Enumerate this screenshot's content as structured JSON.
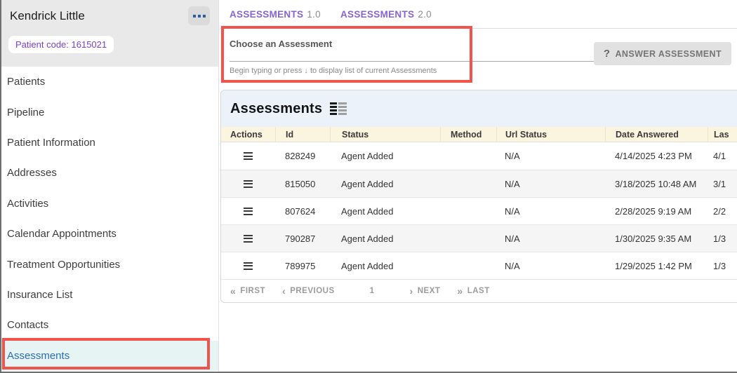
{
  "colors": {
    "tab_purple": "#8a63d2",
    "annotation_red": "#f0544c",
    "active_item_bg": "#e7f4f4",
    "active_item_text": "#2e6cb5",
    "patient_code_purple": "#7b3fd4",
    "table_header_bg": "#fbf5df",
    "panel_header_bg": "#ecf2f9",
    "more_dots_blue": "#2d5f9e"
  },
  "sidebar": {
    "patient_name": "Kendrick Little",
    "patient_code": "Patient code: 1615021",
    "items": [
      {
        "label": "Patients",
        "active": false
      },
      {
        "label": "Pipeline",
        "active": false
      },
      {
        "label": "Patient Information",
        "active": false
      },
      {
        "label": "Addresses",
        "active": false
      },
      {
        "label": "Activities",
        "active": false
      },
      {
        "label": "Calendar Appointments",
        "active": false
      },
      {
        "label": "Treatment Opportunities",
        "active": false
      },
      {
        "label": "Insurance List",
        "active": false
      },
      {
        "label": "Contacts",
        "active": false
      },
      {
        "label": "Assessments",
        "active": true
      }
    ]
  },
  "tabs": [
    {
      "name": "ASSESSMENTS",
      "version": "1.0"
    },
    {
      "name": "ASSESSMENTS",
      "version": "2.0"
    }
  ],
  "picker": {
    "label": "Choose an Assessment",
    "value": "",
    "helper": "Begin typing or press ↓ to display list of current Assessments"
  },
  "answer_button": {
    "icon": "?",
    "label": "ANSWER ASSESSMENT"
  },
  "table": {
    "title": "Assessments",
    "columns": [
      "Actions",
      "Id",
      "Status",
      "Method",
      "Url Status",
      "Date Answered",
      "Las"
    ],
    "rows": [
      {
        "id": "828249",
        "status": "Agent Added",
        "method": "",
        "url_status": "N/A",
        "date_answered": "4/14/2025 4:23 PM",
        "last": "4/1"
      },
      {
        "id": "815050",
        "status": "Agent Added",
        "method": "",
        "url_status": "N/A",
        "date_answered": "3/18/2025 10:48 AM",
        "last": "3/1"
      },
      {
        "id": "807624",
        "status": "Agent Added",
        "method": "",
        "url_status": "N/A",
        "date_answered": "2/28/2025 9:19 AM",
        "last": "2/2"
      },
      {
        "id": "790287",
        "status": "Agent Added",
        "method": "",
        "url_status": "N/A",
        "date_answered": "1/30/2025 9:35 AM",
        "last": "1/3"
      },
      {
        "id": "789975",
        "status": "Agent Added",
        "method": "",
        "url_status": "N/A",
        "date_answered": "1/29/2025 1:42 PM",
        "last": "1/3"
      }
    ],
    "pagination": {
      "first": "FIRST",
      "previous": "PREVIOUS",
      "page": "1",
      "next": "NEXT",
      "last": "LAST"
    }
  }
}
